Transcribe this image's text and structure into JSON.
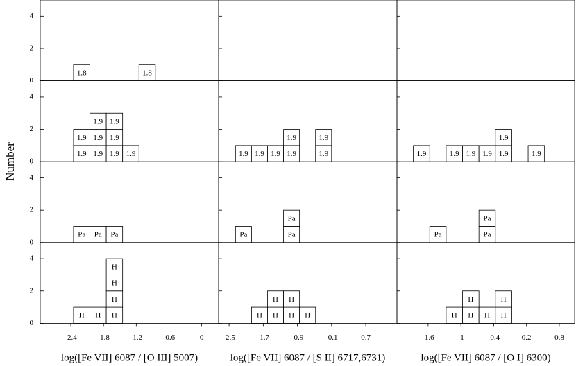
{
  "chart_data": {
    "type": "histogram",
    "ylabel": "Number",
    "ylim": [
      0,
      5
    ],
    "yticks": [
      0,
      2,
      4
    ],
    "columns": [
      {
        "xlabel": "log([Fe VII] 6087 / [O III] 5007)",
        "xlim": [
          -2.96,
          0.31
        ],
        "xticks": [
          -2.4,
          -1.8,
          -1.2,
          -0.6,
          0
        ],
        "bins": [
          -2.35,
          -2.05,
          -1.75,
          -1.45,
          -1.15,
          -0.85
        ]
      },
      {
        "xlabel": "log([Fe VII] 6087 / [S II] 6717,6731)",
        "xlim": [
          -2.745,
          1.43
        ],
        "xticks": [
          -2.5,
          -1.7,
          -0.9,
          -0.1,
          0.7
        ],
        "bins": [
          -2.35,
          -1.975,
          -1.6,
          -1.225,
          -0.85,
          -0.475,
          -0.1
        ]
      },
      {
        "xlabel": "log([Fe VII] 6087 / [O I] 6300)",
        "xlim": [
          -2.17,
          1.08
        ],
        "xticks": [
          -1.6,
          -1.0,
          -0.4,
          0.2,
          0.8
        ],
        "bins": [
          -1.87,
          -1.57,
          -1.27,
          -0.97,
          -0.67,
          -0.37,
          -0.07,
          0.23,
          0.53
        ]
      }
    ],
    "rows": [
      {
        "box_label": "1.8",
        "counts": [
          [
            1,
            0,
            0,
            0,
            1
          ],
          [
            0,
            0,
            0,
            0,
            0,
            0
          ],
          [
            0,
            0,
            0,
            0,
            0,
            0,
            0,
            0
          ]
        ]
      },
      {
        "box_label": "1.9",
        "counts": [
          [
            2,
            3,
            3,
            1,
            0
          ],
          [
            1,
            1,
            1,
            2,
            0,
            2
          ],
          [
            1,
            0,
            1,
            1,
            1,
            2,
            0,
            1
          ]
        ]
      },
      {
        "box_label": "Pa",
        "counts": [
          [
            1,
            1,
            1,
            0,
            0
          ],
          [
            1,
            0,
            0,
            2,
            0,
            0
          ],
          [
            0,
            1,
            0,
            0,
            2,
            0,
            0,
            0
          ]
        ]
      },
      {
        "box_label": "H",
        "counts": [
          [
            1,
            1,
            4,
            0,
            0
          ],
          [
            0,
            1,
            2,
            2,
            1,
            0
          ],
          [
            0,
            0,
            1,
            2,
            1,
            2,
            0,
            0
          ]
        ]
      }
    ]
  }
}
